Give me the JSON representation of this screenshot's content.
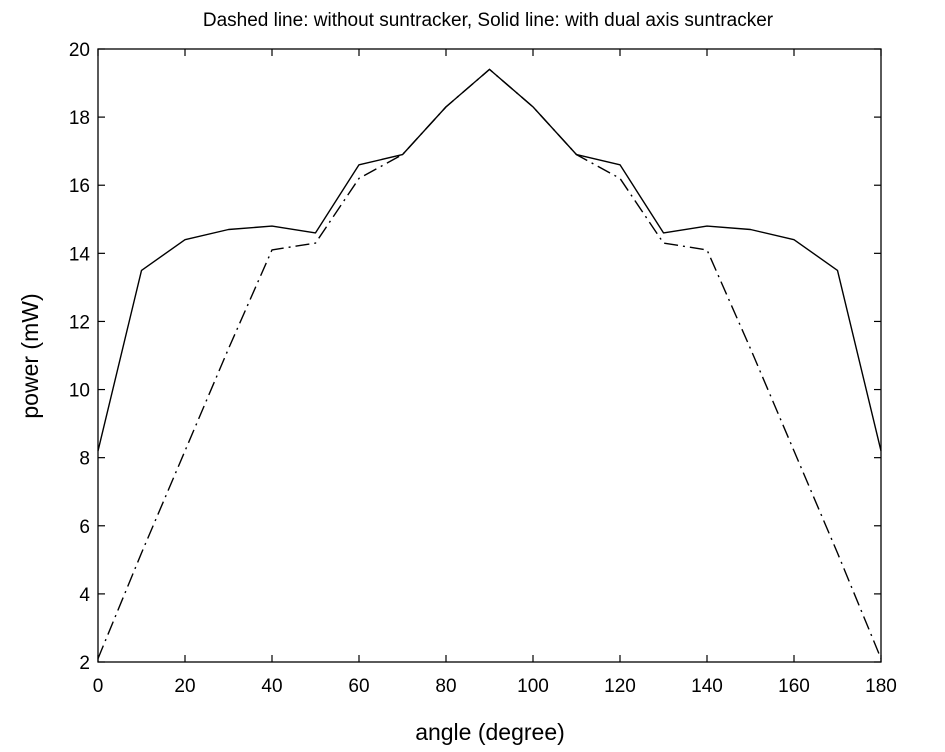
{
  "chart_data": {
    "type": "line",
    "title": "Dashed line: without suntracker, Solid line: with dual axis suntracker",
    "xlabel": "angle (degree)",
    "ylabel": "power (mW)",
    "xlim": [
      0,
      180
    ],
    "ylim": [
      2,
      20
    ],
    "xticks": [
      0,
      20,
      40,
      60,
      80,
      100,
      120,
      140,
      160,
      180
    ],
    "yticks": [
      2,
      4,
      6,
      8,
      10,
      12,
      14,
      16,
      18,
      20
    ],
    "grid": false,
    "legend": "none",
    "x": [
      0,
      10,
      20,
      30,
      40,
      50,
      60,
      70,
      80,
      90,
      100,
      110,
      120,
      130,
      140,
      150,
      160,
      170,
      180
    ],
    "series": [
      {
        "style": "dashdot",
        "values": [
          2.1,
          5.2,
          8.2,
          11.2,
          14.1,
          14.3,
          16.2,
          16.9,
          18.3,
          19.4,
          18.3,
          16.9,
          16.2,
          14.3,
          14.1,
          11.2,
          8.2,
          5.2,
          2.1
        ]
      },
      {
        "style": "solid",
        "values": [
          8.2,
          13.5,
          14.4,
          14.7,
          14.8,
          14.6,
          16.6,
          16.9,
          18.3,
          19.4,
          18.3,
          16.9,
          16.6,
          14.6,
          14.8,
          14.7,
          14.4,
          13.5,
          8.2
        ]
      }
    ],
    "line_color": "#000000"
  }
}
